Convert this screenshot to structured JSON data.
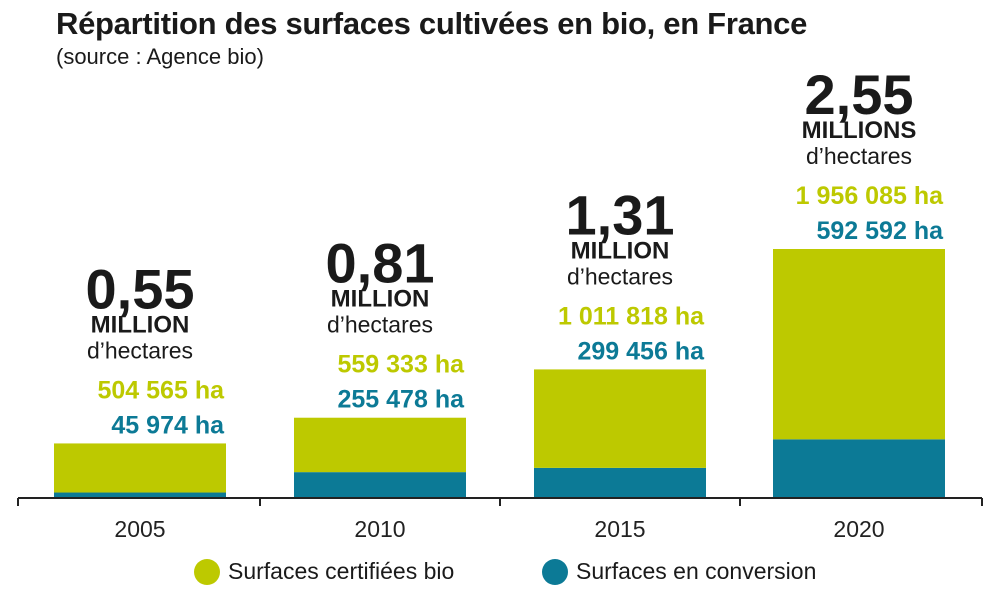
{
  "title": "Répartition des surfaces cultivées en bio, en France",
  "source": "(source : Agence bio)",
  "colors": {
    "certified": "#BDC900",
    "conversion": "#0C7A96",
    "axis": "#222222",
    "total": "#1a1a1a"
  },
  "chart_data": {
    "type": "bar",
    "stacked": true,
    "categories": [
      "2005",
      "2010",
      "2015",
      "2020"
    ],
    "series": [
      {
        "name": "Surfaces en conversion",
        "values": [
          45974,
          255478,
          299456,
          592592
        ],
        "labels": [
          "45 974 ha",
          "255 478 ha",
          "299 456 ha",
          "592 592 ha"
        ]
      },
      {
        "name": "Surfaces certifiées bio",
        "values": [
          504565,
          559333,
          1011818,
          1956085
        ],
        "labels": [
          "504 565 ha",
          "559 333 ha",
          "1 011 818 ha",
          "1 956 085 ha"
        ]
      }
    ],
    "totals": [
      {
        "value": "0,55",
        "unit": "MILLION",
        "sub": "d’hectares"
      },
      {
        "value": "0,81",
        "unit": "MILLION",
        "sub": "d’hectares"
      },
      {
        "value": "1,31",
        "unit": "MILLION",
        "sub": "d’hectares"
      },
      {
        "value": "2,55",
        "unit": "MILLIONS",
        "sub": "d’hectares"
      }
    ],
    "legend": [
      {
        "name": "Surfaces certifiées bio",
        "color": "#BDC900"
      },
      {
        "name": "Surfaces en conversion",
        "color": "#0C7A96"
      }
    ],
    "legend_position": "bottom",
    "grid": false,
    "ylim": [
      0,
      2548677
    ]
  }
}
